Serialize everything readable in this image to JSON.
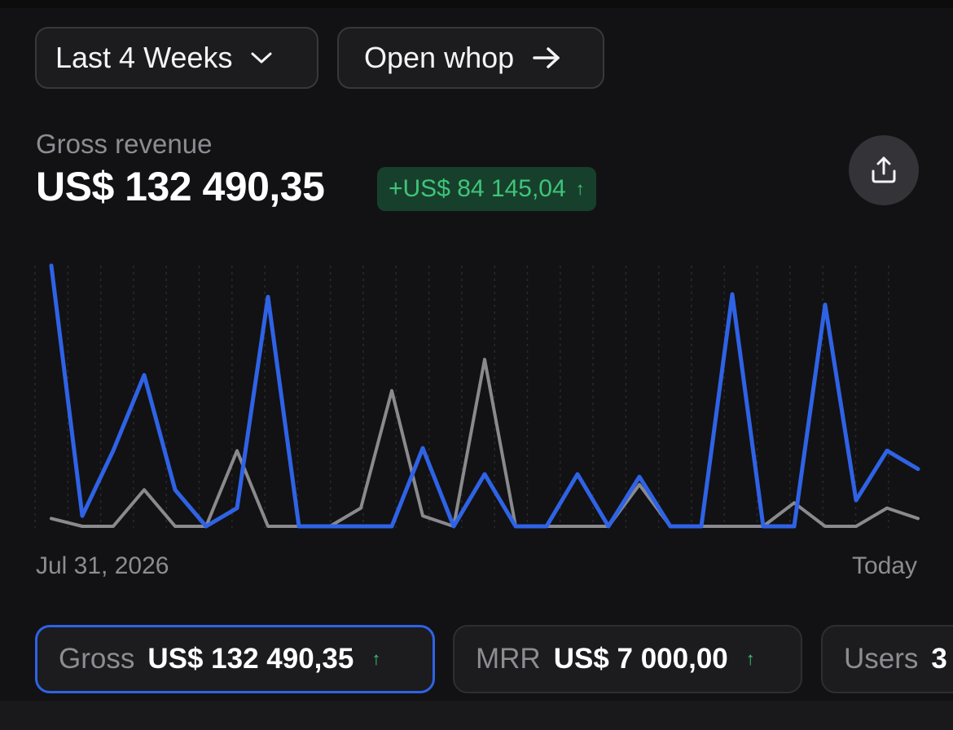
{
  "header": {
    "period_label": "Last 4 Weeks",
    "open_label": "Open whop"
  },
  "summary": {
    "label": "Gross revenue",
    "value": "US$ 132 490,35",
    "delta": "+US$ 84 145,04",
    "delta_arrow": "↑",
    "accent_positive": "#3fc47a"
  },
  "chart_data": {
    "type": "line",
    "x_start_label": "Jul 31, 2026",
    "x_end_label": "Today",
    "grid": "vertical-dashed",
    "series": [
      {
        "color": "#2f63e6",
        "values": [
          100,
          4,
          29,
          58,
          14,
          0,
          7,
          88,
          0,
          0,
          0,
          0,
          30,
          0,
          20,
          0,
          0,
          20,
          0,
          19,
          0,
          0,
          89,
          0,
          0,
          85,
          10,
          29,
          22
        ]
      },
      {
        "color": "#8a8a8e",
        "values": [
          3,
          0,
          0,
          14,
          0,
          0,
          29,
          0,
          0,
          0,
          7,
          52,
          4,
          0,
          64,
          0,
          0,
          0,
          0,
          16,
          0,
          0,
          0,
          0,
          9,
          0,
          0,
          7,
          3
        ]
      }
    ]
  },
  "cards": [
    {
      "label": "Gross",
      "value": "US$ 132 490,35",
      "arrow": "↑",
      "selected": true
    },
    {
      "label": "MRR",
      "value": "US$ 7 000,00",
      "arrow": "↑",
      "selected": false
    },
    {
      "label": "Users",
      "value": "3",
      "arrow": "",
      "selected": false
    }
  ]
}
